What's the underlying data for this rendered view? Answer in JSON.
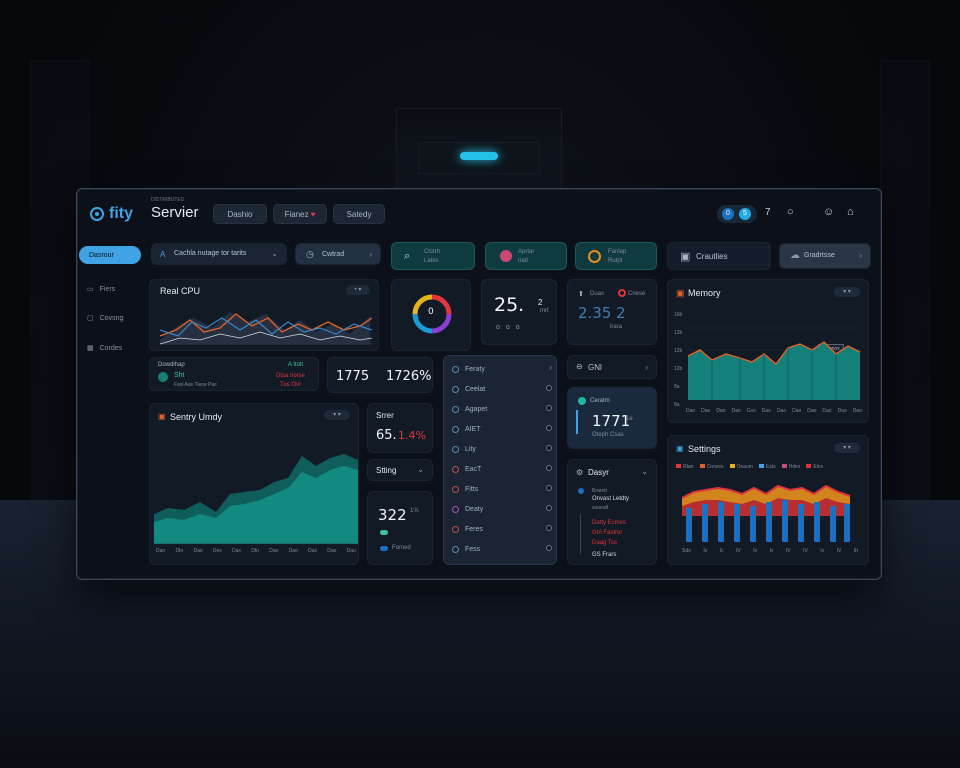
{
  "brand": {
    "logo": "fity",
    "title": "Servier",
    "subtitle": "DISTRIBUTED"
  },
  "header": {
    "nav": [
      "Dashio",
      "Fianez",
      "Satedy"
    ],
    "right_badge_1": "0",
    "right_badge_2": "5",
    "right_num": "7"
  },
  "sidebar": {
    "active": "Dasrour",
    "items": [
      "Fiers",
      "Covsng",
      "Cordes"
    ]
  },
  "toolbar": {
    "search": "Cachla nutage tor tarits",
    "select": "Cwtrad",
    "tile_a_1": "Ctstrh",
    "tile_a_2": "Lates",
    "tile_b_1": "Aprtar",
    "tile_b_2": "riatt",
    "tile_c_1": "Fanlap",
    "tile_c_2": "Rutpt",
    "tile_d": "Crautlies",
    "tile_e": "Gradrtsse"
  },
  "cpu": {
    "title": "Real CPU"
  },
  "gauge": {
    "value": "0"
  },
  "stat25": {
    "value": "25.",
    "sup": "2",
    "sub": "mrt"
  },
  "dims": {
    "label_1": "Duas",
    "label_2": "Cnese",
    "value": "2.35",
    "suffix": "2",
    "sub": "irara"
  },
  "memory": {
    "title": "Memory",
    "tag": "Mennox"
  },
  "info_card": {
    "label": "Dowdihap",
    "link": "A ttolt",
    "value": "Sht",
    "sub": "Fasl Aas Tieoe Pas",
    "alert": "Dtsa norse",
    "alert2": "Tus Ovt"
  },
  "stats_pair": {
    "a": "1775",
    "b": "1726%"
  },
  "sentry": {
    "title": "Sentry Umdy",
    "ticks": [
      "Dan",
      "Dto",
      "Dao",
      "Des",
      "Das",
      "Dtn",
      "Dao",
      "Dao",
      "Das",
      "Dao",
      "Dao"
    ]
  },
  "server_card": {
    "title": "Srrer",
    "value": "65.",
    "value_red": "1.4%"
  },
  "setting_card": {
    "title": "Stting"
  },
  "card322": {
    "value": "322",
    "sup": "1%",
    "sub": "Fomed"
  },
  "list": [
    "Feraty",
    "Ceelat",
    "Agapet",
    "AIET",
    "Lity",
    "EacT",
    "Fitts",
    "Deaty",
    "Feres",
    "Fess"
  ],
  "gnl": {
    "label": "GNl"
  },
  "card1771": {
    "label": "Ceratm",
    "value": "1771",
    "sup": "1e",
    "sub": "Oteph Csas"
  },
  "design": {
    "title": "Dasyr",
    "line1": "Brarett",
    "line2": "Onvast Letdty",
    "line3": "sooealf",
    "line4": "Datty Ecmes",
    "line5": "Gtrl Fastrer",
    "line6": "Daag Tss",
    "line7": "GS Frars"
  },
  "settings": {
    "title": "Settings",
    "legend": [
      "Rtan",
      "Conzes",
      "Oeaum",
      "Ests",
      "Hdes",
      "Elos"
    ],
    "ticks": [
      "Sdo",
      "Iv",
      "Ic",
      "IV",
      "Iv",
      "Iv",
      "IV",
      "IV",
      "Iv",
      "IV",
      "Ih"
    ]
  },
  "mem_y": [
    "16b",
    "12b",
    "12b",
    "12b",
    "8a",
    "8a"
  ],
  "mem_x": [
    "Dao",
    "Dao",
    "Dao",
    "Dao",
    "Ceo",
    "Dao",
    "Dao",
    "Dao",
    "Dao",
    "Dao",
    "Dao",
    "Dao"
  ],
  "colors": {
    "accent": "#22c3e6",
    "teal": "#14807a",
    "orange": "#e3622a",
    "red": "#e0353d",
    "blue": "#1d6fbf",
    "panel": "#121a25"
  }
}
